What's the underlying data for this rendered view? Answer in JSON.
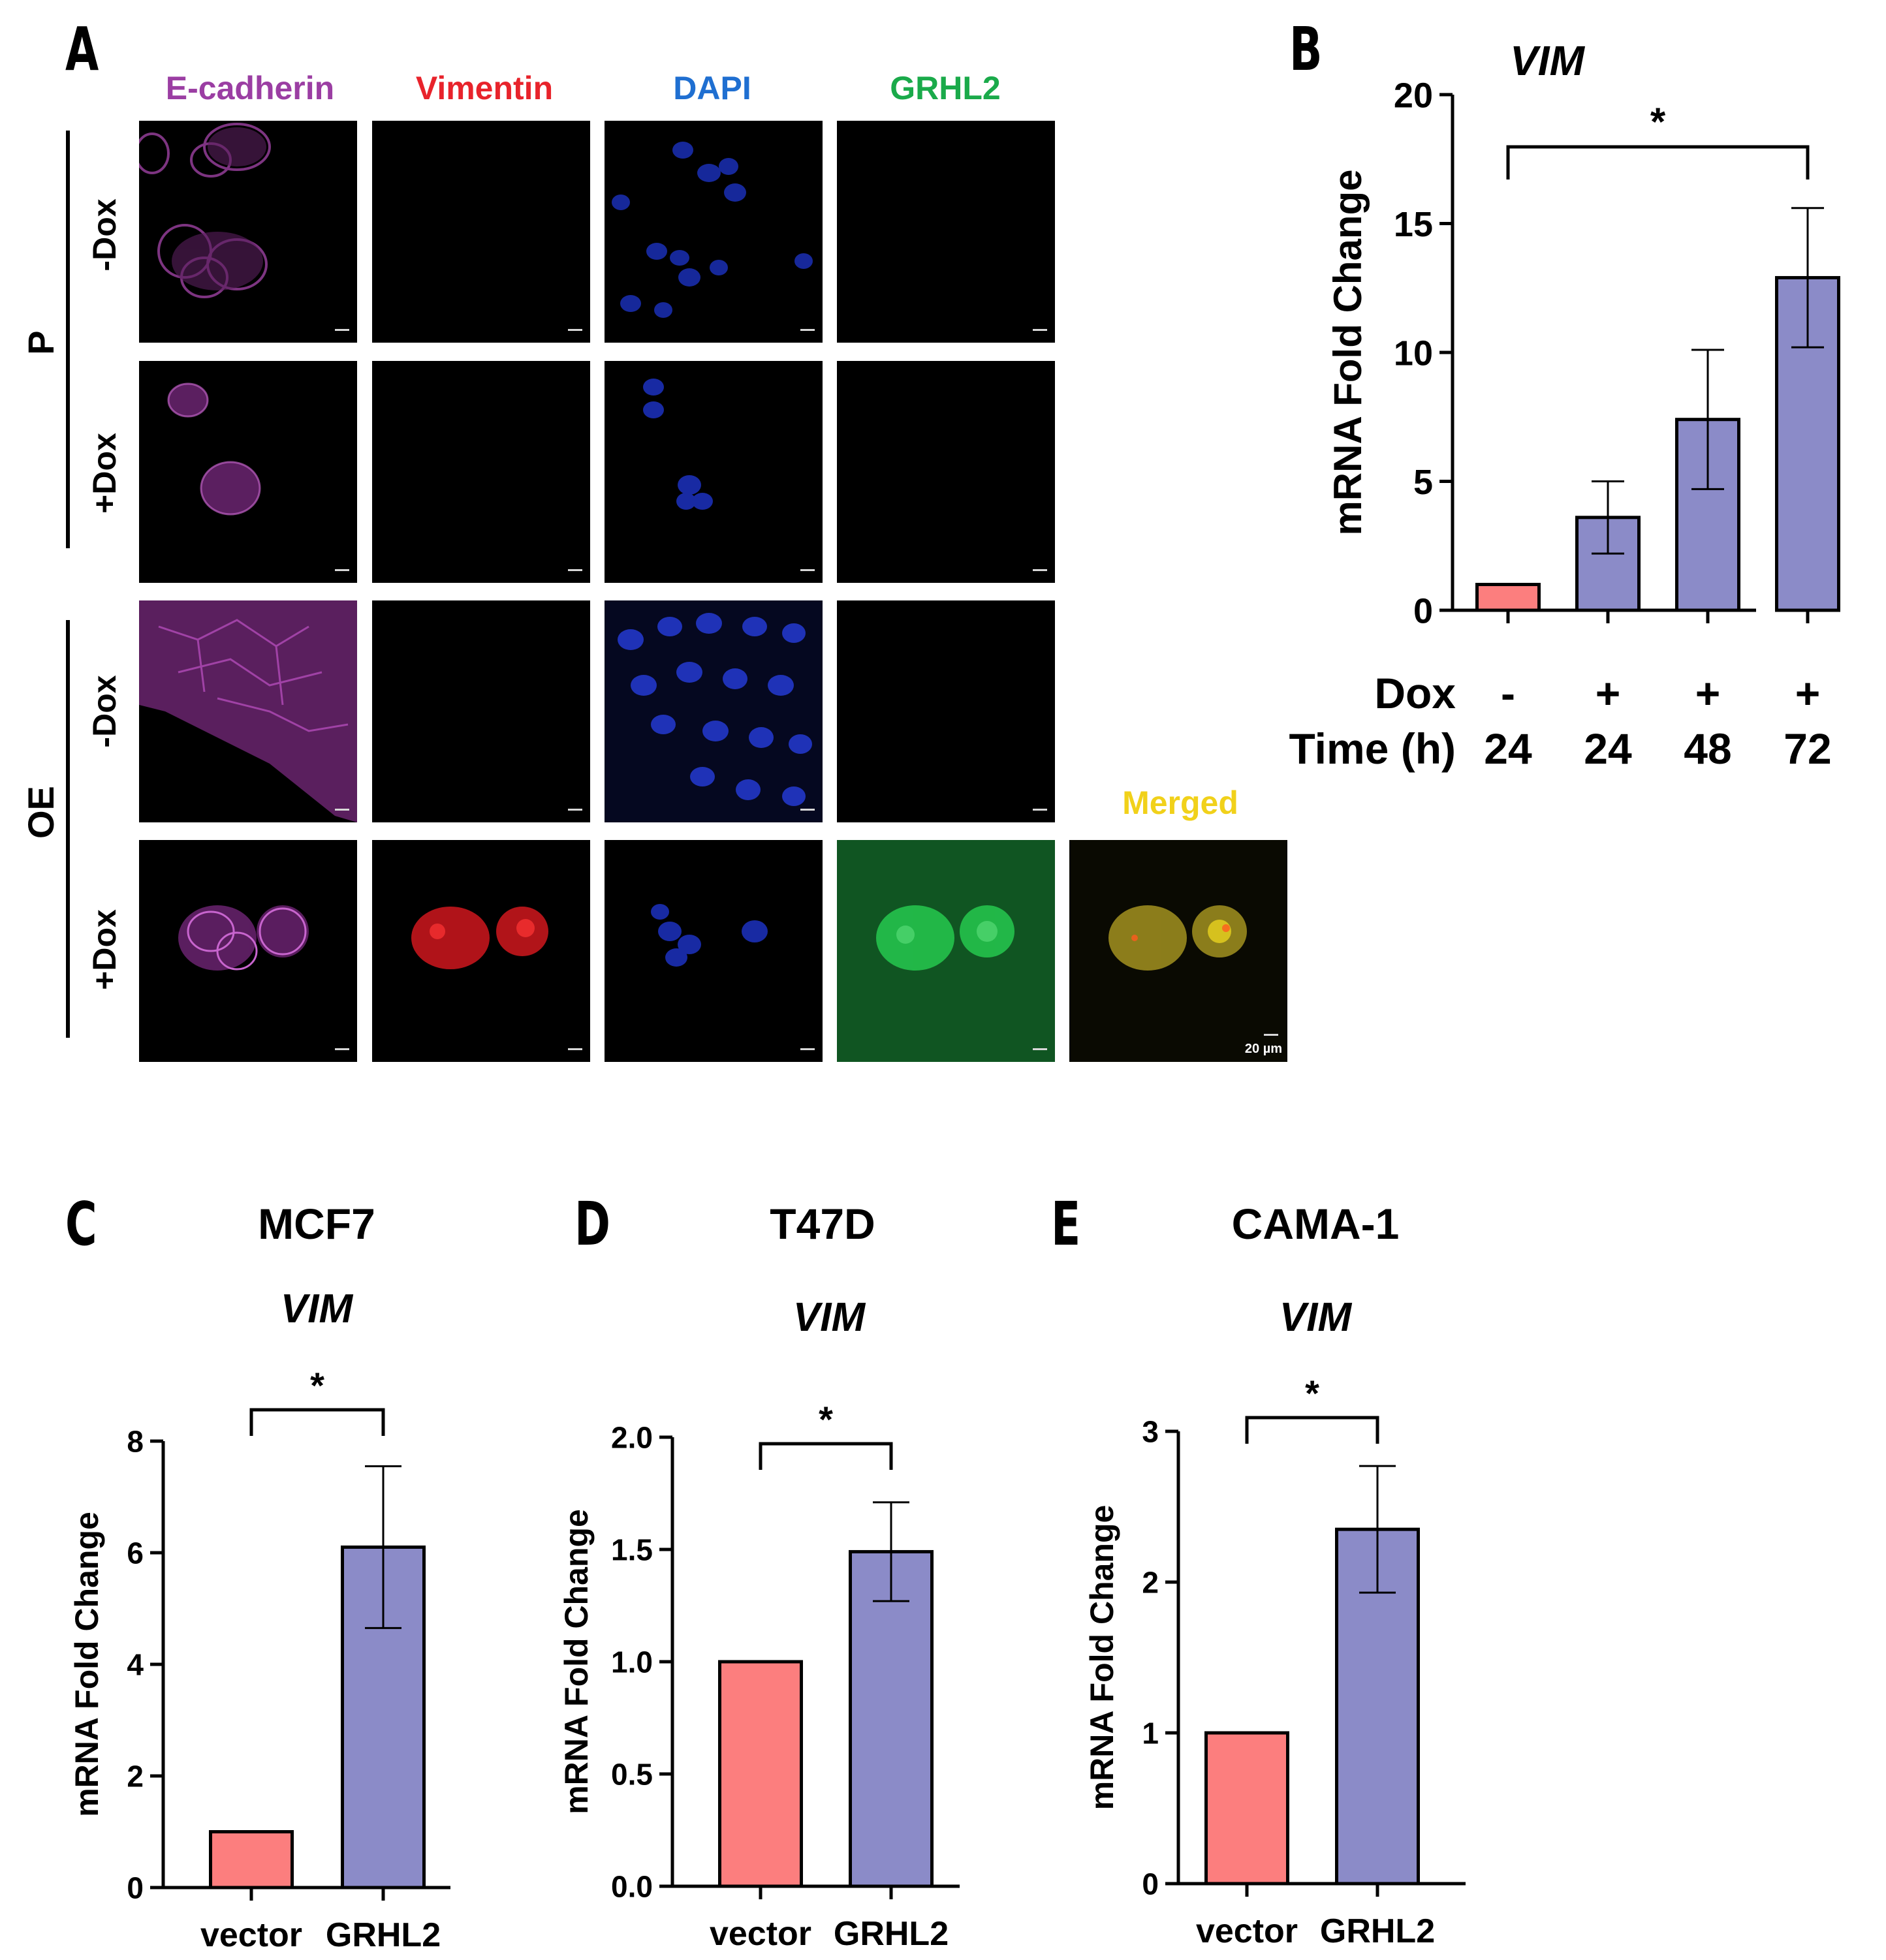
{
  "panel_a": {
    "label": "A",
    "channels": [
      {
        "name": "E-cadherin",
        "color": "#9b3ea3"
      },
      {
        "name": "Vimentin",
        "color": "#e8232b"
      },
      {
        "name": "DAPI",
        "color": "#1f6fd1"
      },
      {
        "name": "GRHL2",
        "color": "#1aaa4a"
      }
    ],
    "merged_label": "Merged",
    "merged_color": "#f1d11a",
    "groups": [
      "P",
      "OE"
    ],
    "row_labels": [
      "-Dox",
      "+Dox",
      "-Dox",
      "+Dox"
    ],
    "scale_text": "20 µm"
  },
  "colors": {
    "vector_bar": "#fc7e7e",
    "grhl2_bar": "#8b8bc8"
  },
  "panels": {
    "B": {
      "label": "B",
      "gene": "VIM"
    },
    "C": {
      "label": "C",
      "cell_line": "MCF7",
      "gene": "VIM"
    },
    "D": {
      "label": "D",
      "cell_line": "T47D",
      "gene": "VIM"
    },
    "E": {
      "label": "E",
      "cell_line": "CAMA-1",
      "gene": "VIM"
    }
  },
  "chart_data": [
    {
      "panel": "B",
      "type": "bar",
      "title": "VIM",
      "ylabel": "mRNA Fold Change",
      "ylim": [
        0,
        20
      ],
      "yticks": [
        "0",
        "5",
        "10",
        "15",
        "20"
      ],
      "rows": [
        {
          "label": "Dox",
          "values": [
            "-",
            "+",
            "+",
            "+"
          ]
        },
        {
          "label": "Time (h)",
          "values": [
            "24",
            "24",
            "48",
            "72"
          ]
        }
      ],
      "values": [
        1.0,
        3.6,
        7.4,
        12.9
      ],
      "errors": [
        0,
        1.4,
        2.7,
        2.7
      ],
      "colors": [
        "#fc7e7e",
        "#8b8bc8",
        "#8b8bc8",
        "#8b8bc8"
      ],
      "significance": {
        "from": 0,
        "to": 3,
        "mark": "*"
      }
    },
    {
      "panel": "C",
      "type": "bar",
      "title": "MCF7",
      "subtitle": "VIM",
      "ylabel": "mRNA Fold Change",
      "ylim": [
        0,
        8
      ],
      "yticks": [
        "0",
        "2",
        "4",
        "6",
        "8"
      ],
      "categories": [
        "vector",
        "GRHL2"
      ],
      "values": [
        1.0,
        6.1
      ],
      "errors": [
        0,
        1.45
      ],
      "colors": [
        "#fc7e7e",
        "#8b8bc8"
      ],
      "significance": {
        "from": 0,
        "to": 1,
        "mark": "*"
      }
    },
    {
      "panel": "D",
      "type": "bar",
      "title": "T47D",
      "subtitle": "VIM",
      "ylabel": "mRNA Fold Change",
      "ylim": [
        0,
        2.0
      ],
      "yticks": [
        "0.0",
        "0.5",
        "1.0",
        "1.5",
        "2.0"
      ],
      "categories": [
        "vector",
        "GRHL2"
      ],
      "values": [
        1.0,
        1.49
      ],
      "errors": [
        0,
        0.22
      ],
      "colors": [
        "#fc7e7e",
        "#8b8bc8"
      ],
      "significance": {
        "from": 0,
        "to": 1,
        "mark": "*"
      }
    },
    {
      "panel": "E",
      "type": "bar",
      "title": "CAMA-1",
      "subtitle": "VIM",
      "ylabel": "mRNA Fold Change",
      "ylim": [
        0,
        3
      ],
      "yticks": [
        "0",
        "1",
        "2",
        "3"
      ],
      "categories": [
        "vector",
        "GRHL2"
      ],
      "values": [
        1.0,
        2.35
      ],
      "errors": [
        0,
        0.42
      ],
      "colors": [
        "#fc7e7e",
        "#8b8bc8"
      ],
      "significance": {
        "from": 0,
        "to": 1,
        "mark": "*"
      }
    }
  ]
}
